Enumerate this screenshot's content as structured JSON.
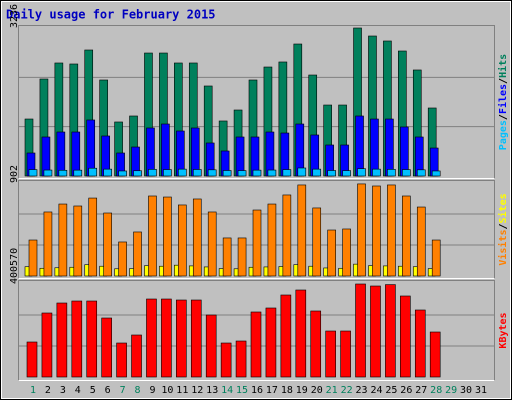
{
  "chart_data": [
    {
      "type": "bar",
      "title": "Daily usage for February 2015",
      "legend_separator": "/",
      "ylim": [
        0,
        3236
      ],
      "yticks": [
        3236
      ],
      "series": [
        {
          "name": "Hits",
          "color": "#00805c",
          "values": [
            1246,
            2121,
            2471,
            2449,
            2755,
            2099,
            1181,
            1312,
            2689,
            2689,
            2471,
            2471,
            1968,
            1203,
            1443,
            2099,
            2383,
            2493,
            2886,
            2208,
            1552,
            1552,
            3236,
            3061,
            2952,
            2733,
            2318,
            1487,
            null,
            null,
            null
          ]
        },
        {
          "name": "Files",
          "color": "#0000ff",
          "values": [
            503,
            853,
            962,
            962,
            1225,
            875,
            503,
            634,
            1050,
            1137,
            984,
            1050,
            722,
            547,
            853,
            853,
            962,
            940,
            1137,
            897,
            678,
            678,
            1312,
            1246,
            1246,
            1072,
            853,
            612,
            null,
            null,
            null
          ]
        },
        {
          "name": "Pages",
          "color": "#00c0ff",
          "values": [
            140,
            130,
            125,
            128,
            170,
            150,
            110,
            115,
            145,
            140,
            150,
            142,
            135,
            120,
            118,
            128,
            130,
            140,
            175,
            150,
            120,
            118,
            160,
            150,
            145,
            140,
            135,
            110,
            null,
            null,
            null
          ]
        }
      ]
    },
    {
      "type": "bar",
      "legend_separator": "/",
      "ylim": [
        0,
        902
      ],
      "yticks": [
        902
      ],
      "series": [
        {
          "name": "Sites",
          "color": "#ffff00",
          "values": [
            90,
            75,
            80,
            85,
            110,
            95,
            70,
            72,
            100,
            95,
            105,
            98,
            88,
            72,
            70,
            85,
            88,
            92,
            110,
            95,
            78,
            75,
            115,
            100,
            98,
            95,
            90,
            72,
            null,
            null,
            null
          ]
        },
        {
          "name": "Visits",
          "color": "#ff8000",
          "values": [
            349,
            621,
            698,
            679,
            756,
            611,
            330,
            427,
            776,
            766,
            689,
            747,
            621,
            369,
            369,
            640,
            698,
            786,
            883,
            660,
            446,
            456,
            893,
            873,
            883,
            776,
            669,
            349,
            null,
            null,
            null
          ]
        }
      ]
    },
    {
      "type": "bar",
      "ylim": [
        0,
        400570
      ],
      "yticks": [
        400570
      ],
      "categories": [
        "1",
        "2",
        "3",
        "4",
        "5",
        "6",
        "7",
        "8",
        "9",
        "10",
        "11",
        "12",
        "13",
        "14",
        "15",
        "16",
        "17",
        "18",
        "19",
        "20",
        "21",
        "22",
        "23",
        "24",
        "25",
        "26",
        "27",
        "28",
        "29",
        "30",
        "31"
      ],
      "category_colors": [
        "#00805c",
        "#000000",
        "#000000",
        "#000000",
        "#000000",
        "#000000",
        "#00805c",
        "#00805c",
        "#000000",
        "#000000",
        "#000000",
        "#000000",
        "#000000",
        "#00805c",
        "#00805c",
        "#000000",
        "#000000",
        "#000000",
        "#000000",
        "#000000",
        "#00805c",
        "#00805c",
        "#000000",
        "#000000",
        "#000000",
        "#000000",
        "#000000",
        "#00805c",
        "#00805c",
        "#000000",
        "#000000"
      ],
      "series": [
        {
          "name": "KBytes",
          "color": "#ff0000",
          "values": [
            150750,
            275650,
            318700,
            327300,
            327300,
            254100,
            146400,
            180900,
            335900,
            335900,
            331600,
            331600,
            267000,
            146400,
            155000,
            280000,
            297200,
            353200,
            374700,
            284300,
            198100,
            198100,
            400570,
            391900,
            398000,
            348900,
            288600,
            193800,
            null,
            null,
            null
          ]
        }
      ]
    }
  ]
}
